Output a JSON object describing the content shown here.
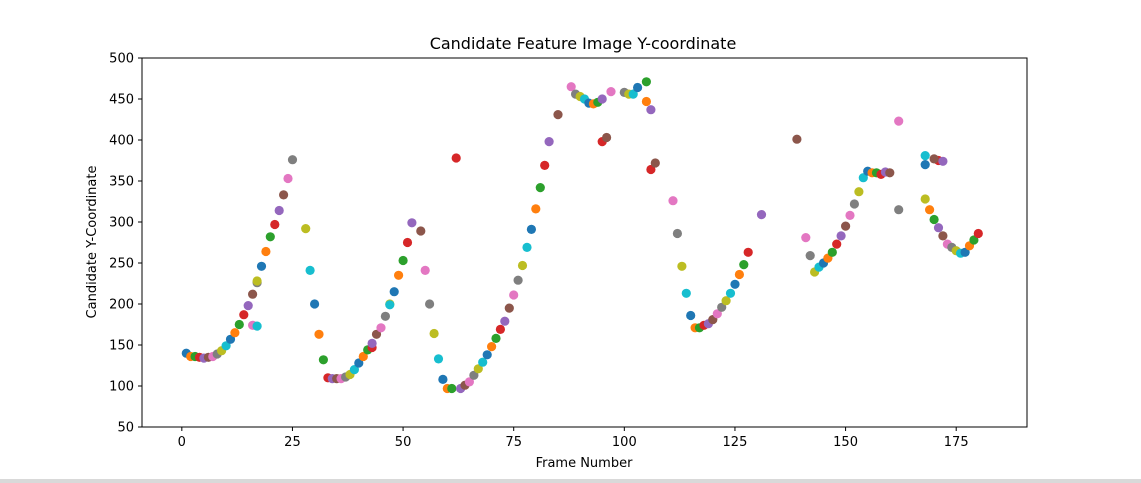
{
  "chart_data": {
    "type": "scatter",
    "title": "Candidate Feature Image Y-coordinate",
    "xlabel": "Frame Number",
    "ylabel": "Candidate Y-Coordinate",
    "xlim": [
      -9,
      191
    ],
    "ylim": [
      50,
      500
    ],
    "xticks": [
      0,
      25,
      50,
      75,
      100,
      125,
      150,
      175
    ],
    "yticks": [
      50,
      100,
      150,
      200,
      250,
      300,
      350,
      400,
      450,
      500
    ],
    "grid": false,
    "legend": "none",
    "color_cycle": [
      "#1f77b4",
      "#ff7f0e",
      "#2ca02c",
      "#d62728",
      "#9467bd",
      "#8c564b",
      "#e377c2",
      "#7f7f7f",
      "#bcbd22",
      "#17becf"
    ],
    "points": [
      [
        1,
        140
      ],
      [
        2,
        136
      ],
      [
        3,
        136
      ],
      [
        4,
        135
      ],
      [
        5,
        134
      ],
      [
        6,
        135
      ],
      [
        7,
        136
      ],
      [
        8,
        139
      ],
      [
        9,
        143
      ],
      [
        10,
        149
      ],
      [
        11,
        157
      ],
      [
        12,
        165
      ],
      [
        13,
        175
      ],
      [
        14,
        187
      ],
      [
        15,
        198
      ],
      [
        16,
        212
      ],
      [
        16,
        174
      ],
      [
        17,
        226
      ],
      [
        17,
        228
      ],
      [
        17,
        173
      ],
      [
        18,
        246
      ],
      [
        19,
        264
      ],
      [
        20,
        282
      ],
      [
        21,
        297
      ],
      [
        22,
        314
      ],
      [
        23,
        333
      ],
      [
        24,
        353
      ],
      [
        25,
        376
      ],
      [
        28,
        292
      ],
      [
        29,
        241
      ],
      [
        30,
        200
      ],
      [
        31,
        163
      ],
      [
        32,
        132
      ],
      [
        33,
        110
      ],
      [
        34,
        109
      ],
      [
        35,
        109
      ],
      [
        36,
        109
      ],
      [
        37,
        111
      ],
      [
        38,
        114
      ],
      [
        39,
        120
      ],
      [
        40,
        128
      ],
      [
        41,
        136
      ],
      [
        42,
        144
      ],
      [
        43,
        147
      ],
      [
        43,
        152
      ],
      [
        44,
        163
      ],
      [
        45,
        171
      ],
      [
        46,
        185
      ],
      [
        47,
        200
      ],
      [
        47,
        199
      ],
      [
        48,
        215
      ],
      [
        49,
        235
      ],
      [
        50,
        253
      ],
      [
        51,
        275
      ],
      [
        52,
        299
      ],
      [
        54,
        289
      ],
      [
        55,
        241
      ],
      [
        56,
        200
      ],
      [
        57,
        164
      ],
      [
        58,
        133
      ],
      [
        59,
        108
      ],
      [
        60,
        97
      ],
      [
        61,
        97
      ],
      [
        62,
        378
      ],
      [
        63,
        97
      ],
      [
        64,
        101
      ],
      [
        65,
        105
      ],
      [
        66,
        113
      ],
      [
        67,
        121
      ],
      [
        68,
        129
      ],
      [
        69,
        138
      ],
      [
        70,
        148
      ],
      [
        71,
        158
      ],
      [
        72,
        169
      ],
      [
        73,
        179
      ],
      [
        74,
        195
      ],
      [
        75,
        211
      ],
      [
        76,
        229
      ],
      [
        77,
        247
      ],
      [
        78,
        269
      ],
      [
        79,
        291
      ],
      [
        80,
        316
      ],
      [
        81,
        342
      ],
      [
        82,
        369
      ],
      [
        83,
        398
      ],
      [
        85,
        431
      ],
      [
        88,
        465
      ],
      [
        89,
        456
      ],
      [
        90,
        453
      ],
      [
        91,
        450
      ],
      [
        92,
        445
      ],
      [
        93,
        444
      ],
      [
        94,
        446
      ],
      [
        95,
        398
      ],
      [
        95,
        450
      ],
      [
        96,
        403
      ],
      [
        97,
        459
      ],
      [
        100,
        458
      ],
      [
        101,
        456
      ],
      [
        102,
        456
      ],
      [
        103,
        464
      ],
      [
        105,
        447
      ],
      [
        105,
        471
      ],
      [
        106,
        364
      ],
      [
        106,
        437
      ],
      [
        107,
        372
      ],
      [
        111,
        326
      ],
      [
        112,
        286
      ],
      [
        113,
        246
      ],
      [
        114,
        213
      ],
      [
        115,
        186
      ],
      [
        116,
        171
      ],
      [
        117,
        171
      ],
      [
        118,
        174
      ],
      [
        119,
        176
      ],
      [
        120,
        181
      ],
      [
        121,
        188
      ],
      [
        122,
        196
      ],
      [
        123,
        204
      ],
      [
        124,
        213
      ],
      [
        125,
        224
      ],
      [
        126,
        236
      ],
      [
        127,
        248
      ],
      [
        128,
        263
      ],
      [
        131,
        309
      ],
      [
        139,
        401
      ],
      [
        141,
        281
      ],
      [
        142,
        259
      ],
      [
        143,
        239
      ],
      [
        144,
        245
      ],
      [
        145,
        250
      ],
      [
        146,
        256
      ],
      [
        147,
        263
      ],
      [
        148,
        273
      ],
      [
        149,
        283
      ],
      [
        150,
        295
      ],
      [
        151,
        308
      ],
      [
        152,
        322
      ],
      [
        153,
        337
      ],
      [
        154,
        354
      ],
      [
        155,
        362
      ],
      [
        156,
        360
      ],
      [
        157,
        360
      ],
      [
        158,
        358
      ],
      [
        159,
        361
      ],
      [
        160,
        360
      ],
      [
        162,
        423
      ],
      [
        162,
        315
      ],
      [
        168,
        328
      ],
      [
        168,
        381
      ],
      [
        168,
        370
      ],
      [
        169,
        315
      ],
      [
        170,
        303
      ],
      [
        171,
        375
      ],
      [
        171,
        293
      ],
      [
        172,
        283
      ],
      [
        173,
        273
      ],
      [
        174,
        269
      ],
      [
        175,
        265
      ],
      [
        176,
        262
      ],
      [
        177,
        263
      ],
      [
        178,
        271
      ],
      [
        179,
        278
      ],
      [
        180,
        286
      ],
      [
        172,
        374
      ],
      [
        170,
        377
      ]
    ]
  }
}
